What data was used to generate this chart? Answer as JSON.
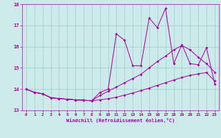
{
  "xlabel": "Windchill (Refroidissement éolien,°C)",
  "xlim": [
    -0.5,
    23.5
  ],
  "ylim": [
    13,
    18
  ],
  "xticks": [
    0,
    1,
    2,
    3,
    4,
    5,
    6,
    7,
    8,
    9,
    10,
    11,
    12,
    13,
    14,
    15,
    16,
    17,
    18,
    19,
    20,
    21,
    22,
    23
  ],
  "yticks": [
    13,
    14,
    15,
    16,
    17,
    18
  ],
  "bg_color": "#cceaea",
  "grid_color": "#99cccc",
  "line_color": "#aa00aa",
  "line1_x": [
    0,
    1,
    2,
    3,
    4,
    5,
    6,
    7,
    8,
    9,
    10,
    11,
    12,
    13,
    14,
    15,
    16,
    17,
    18,
    19,
    20,
    21,
    22,
    23
  ],
  "line1_y": [
    14.0,
    13.85,
    13.78,
    13.6,
    13.55,
    13.52,
    13.5,
    13.48,
    13.46,
    13.85,
    14.0,
    16.6,
    16.3,
    15.1,
    15.1,
    17.35,
    16.9,
    17.8,
    15.2,
    16.1,
    15.2,
    15.15,
    15.95,
    14.25
  ],
  "line2_x": [
    0,
    1,
    2,
    3,
    4,
    5,
    6,
    7,
    8,
    9,
    10,
    11,
    12,
    13,
    14,
    15,
    16,
    17,
    18,
    19,
    20,
    21,
    22,
    23
  ],
  "line2_y": [
    14.0,
    13.85,
    13.78,
    13.6,
    13.56,
    13.53,
    13.5,
    13.48,
    13.46,
    13.7,
    13.9,
    14.1,
    14.3,
    14.5,
    14.7,
    15.0,
    15.3,
    15.55,
    15.85,
    16.05,
    15.85,
    15.5,
    15.2,
    14.8
  ],
  "line3_x": [
    0,
    1,
    2,
    3,
    4,
    5,
    6,
    7,
    8,
    9,
    10,
    11,
    12,
    13,
    14,
    15,
    16,
    17,
    18,
    19,
    20,
    21,
    22,
    23
  ],
  "line3_y": [
    14.0,
    13.85,
    13.78,
    13.6,
    13.56,
    13.53,
    13.5,
    13.48,
    13.46,
    13.5,
    13.55,
    13.62,
    13.72,
    13.82,
    13.93,
    14.05,
    14.18,
    14.3,
    14.43,
    14.55,
    14.65,
    14.72,
    14.78,
    14.38
  ]
}
